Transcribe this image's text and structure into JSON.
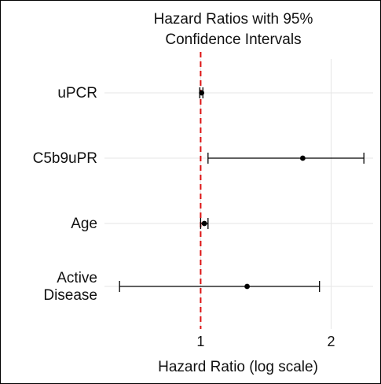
{
  "chart_data": {
    "type": "forest",
    "title_lines": [
      "Hazard Ratios with 95%",
      "Confidence Intervals"
    ],
    "xlabel": "Hazard Ratio (log scale)",
    "ylabel": "",
    "x_scale": "log",
    "xlim": [
      0.6,
      2.5
    ],
    "x_ticks": [
      1,
      2
    ],
    "x_tick_labels": [
      "1",
      "2"
    ],
    "grid": true,
    "reference_line": {
      "x": 1,
      "color": "#dd1111",
      "style": "dashed"
    },
    "point_color": "#000000",
    "rows": [
      {
        "label_lines": [
          "uPCR"
        ],
        "estimate": 1.005,
        "ci_low": 0.995,
        "ci_high": 1.012
      },
      {
        "label_lines": [
          "C5b9uPR"
        ],
        "estimate": 1.72,
        "ci_low": 1.04,
        "ci_high": 2.38
      },
      {
        "label_lines": [
          "Age"
        ],
        "estimate": 1.02,
        "ci_low": 1.0,
        "ci_high": 1.04
      },
      {
        "label_lines": [
          "Active",
          "Disease"
        ],
        "estimate": 1.28,
        "ci_low": 0.65,
        "ci_high": 1.88
      }
    ]
  }
}
